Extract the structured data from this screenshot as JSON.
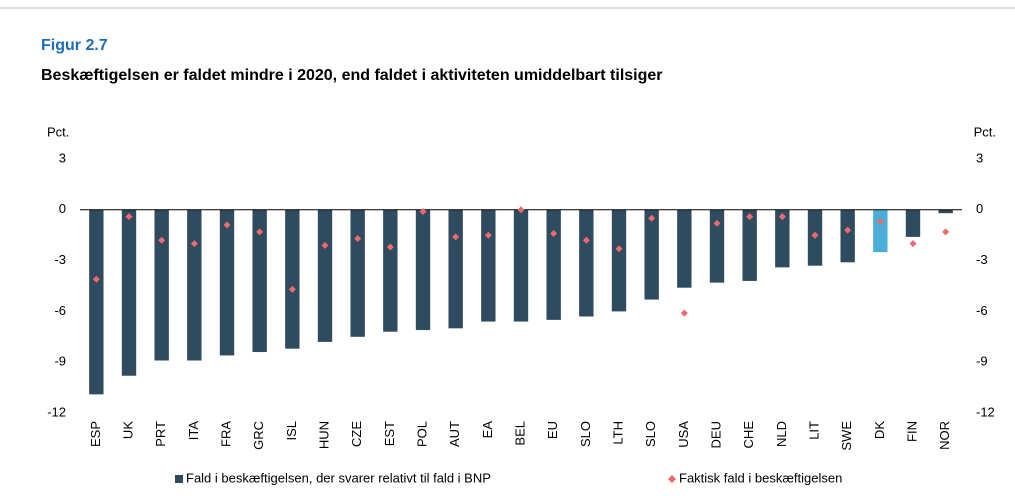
{
  "chart_data": {
    "type": "bar",
    "figure_label": "Figur 2.7",
    "title": "Beskæftigelsen er faldet mindre i 2020, end faldet i aktiviteten umiddelbart tilsiger",
    "ylabel": "Pct.",
    "y2label": "Pct.",
    "categories": [
      "ESP",
      "UK",
      "PRT",
      "ITA",
      "FRA",
      "GRC",
      "ISL",
      "HUN",
      "CZE",
      "EST",
      "POL",
      "AUT",
      "EA",
      "BEL",
      "EU",
      "SLO",
      "LTH",
      "SLO",
      "USA",
      "DEU",
      "CHE",
      "NLD",
      "LIT",
      "SWE",
      "DK",
      "FIN",
      "NOR"
    ],
    "series": [
      {
        "name": "Fald i beskæftigelsen, der svarer relativt til fald i BNP",
        "type": "bar",
        "color": "#2f4b5f",
        "point_colors": [
          "#2f4b5f",
          "#2f4b5f",
          "#2f4b5f",
          "#2f4b5f",
          "#2f4b5f",
          "#2f4b5f",
          "#2f4b5f",
          "#2f4b5f",
          "#2f4b5f",
          "#2f4b5f",
          "#2f4b5f",
          "#2f4b5f",
          "#2f4b5f",
          "#2f4b5f",
          "#2f4b5f",
          "#2f4b5f",
          "#2f4b5f",
          "#2f4b5f",
          "#2f4b5f",
          "#2f4b5f",
          "#2f4b5f",
          "#2f4b5f",
          "#2f4b5f",
          "#2f4b5f",
          "#4aaed9",
          "#2f4b5f",
          "#2f4b5f"
        ],
        "values": [
          -10.9,
          -9.8,
          -8.9,
          -8.9,
          -8.6,
          -8.4,
          -8.2,
          -7.8,
          -7.5,
          -7.2,
          -7.1,
          -7.0,
          -6.6,
          -6.6,
          -6.5,
          -6.3,
          -6.0,
          -5.3,
          -4.6,
          -4.3,
          -4.2,
          -3.4,
          -3.3,
          -3.1,
          -2.5,
          -1.6,
          -0.2
        ]
      },
      {
        "name": "Faktisk fald i beskæftigelsen",
        "type": "scatter",
        "color": "#f06a6a",
        "axis": "y2",
        "values": [
          -4.1,
          -0.4,
          -1.8,
          -2.0,
          -0.9,
          -1.3,
          -4.7,
          -2.1,
          -1.7,
          -2.2,
          -0.1,
          -1.6,
          -1.5,
          0.0,
          -1.4,
          -1.8,
          -2.3,
          -0.5,
          -6.1,
          -0.8,
          -0.4,
          -0.4,
          -1.5,
          -1.2,
          -0.7,
          -2.0,
          -1.3
        ]
      }
    ],
    "ylim": [
      -12,
      3
    ],
    "yticks": [
      3,
      0,
      -3,
      -6,
      -9,
      -12
    ],
    "y2lim": [
      -12,
      3
    ],
    "y2ticks": [
      3,
      0,
      -3,
      -6,
      -9,
      -12
    ],
    "legend": "bottom"
  }
}
